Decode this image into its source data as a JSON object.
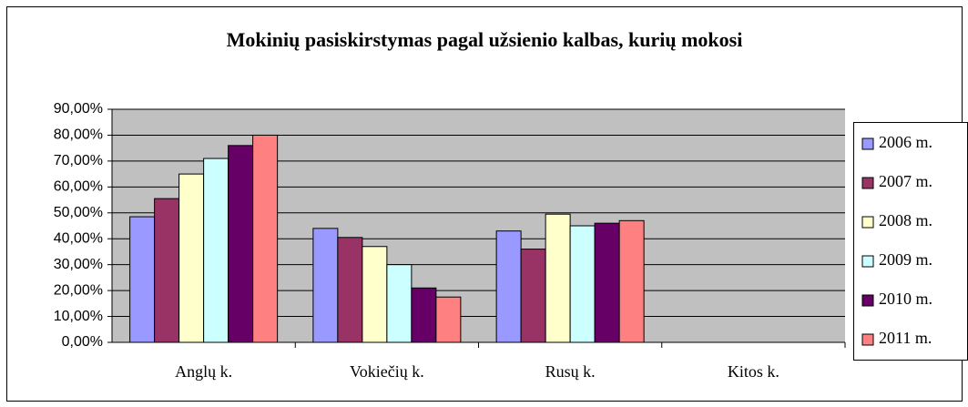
{
  "chart_data": {
    "type": "bar",
    "title": "Mokinių pasiskirstymas pagal užsienio kalbas, kurių mokosi",
    "categories": [
      "Anglų k.",
      "Vokiečių k.",
      "Rusų k.",
      "Kitos k."
    ],
    "series": [
      {
        "name": "2006 m.",
        "color": "#9999ff",
        "values": [
          48.5,
          44,
          43,
          null
        ]
      },
      {
        "name": "2007 m.",
        "color": "#993366",
        "values": [
          55.5,
          40.5,
          36,
          null
        ]
      },
      {
        "name": "2008 m.",
        "color": "#ffffcc",
        "values": [
          65,
          37,
          49.5,
          null
        ]
      },
      {
        "name": "2009 m.",
        "color": "#ccffff",
        "values": [
          71,
          30,
          45,
          null
        ]
      },
      {
        "name": "2010 m.",
        "color": "#660066",
        "values": [
          76,
          21,
          46,
          null
        ]
      },
      {
        "name": "2011 m.",
        "color": "#ff8080",
        "values": [
          80,
          17.5,
          47,
          null
        ]
      }
    ],
    "ylim": [
      0,
      90
    ],
    "yticks": [
      {
        "value": 0,
        "label": "0,00%"
      },
      {
        "value": 10,
        "label": "10,00%"
      },
      {
        "value": 20,
        "label": "20,00%"
      },
      {
        "value": 30,
        "label": "30,00%"
      },
      {
        "value": 40,
        "label": "40,00%"
      },
      {
        "value": 50,
        "label": "50,00%"
      },
      {
        "value": 60,
        "label": "60,00%"
      },
      {
        "value": 70,
        "label": "70,00%"
      },
      {
        "value": 80,
        "label": "80,00%"
      },
      {
        "value": 90,
        "label": "90,00%"
      }
    ],
    "grid": true,
    "legend": "right"
  }
}
